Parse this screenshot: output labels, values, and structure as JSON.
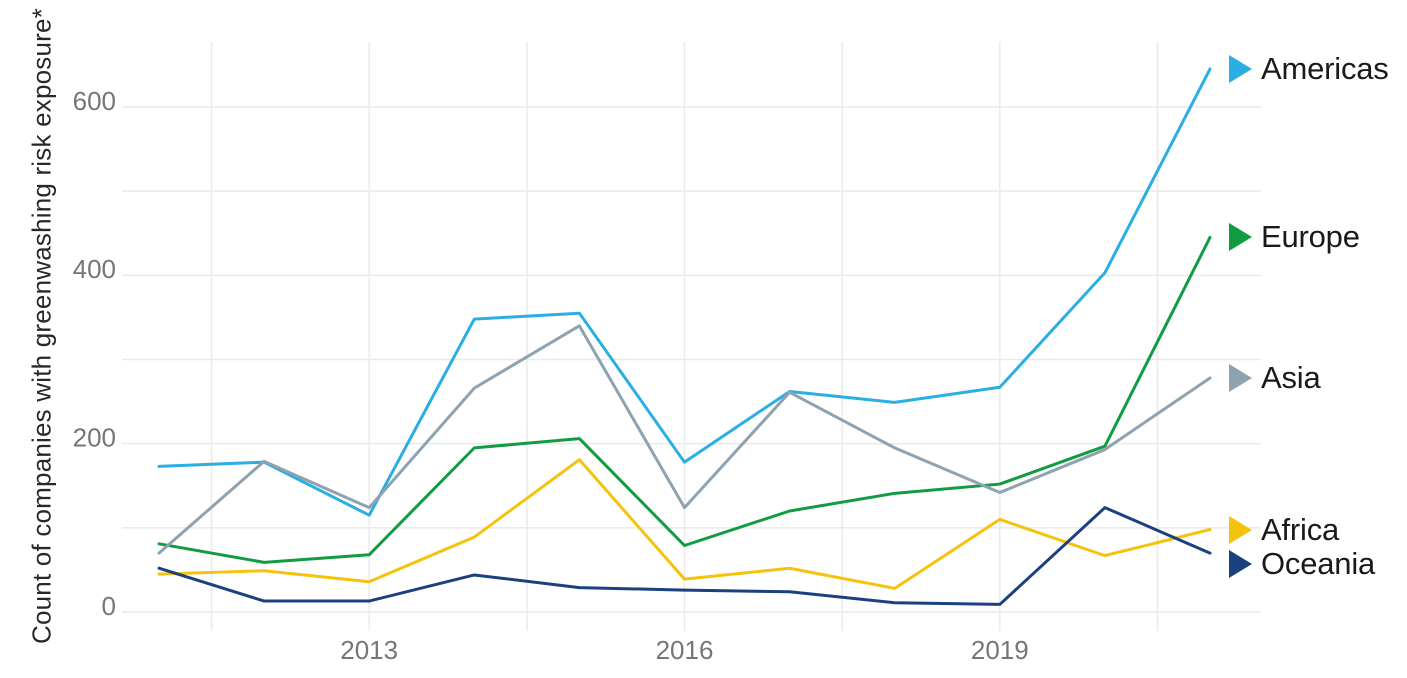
{
  "chart_data": {
    "type": "line",
    "title": "",
    "xlabel": "",
    "ylabel": "Count of companies with greenwashing risk exposure*",
    "x": [
      2011,
      2012,
      2013,
      2014,
      2015,
      2016,
      2017,
      2018,
      2019,
      2020,
      2021
    ],
    "x_tick_labels": [
      "2013",
      "2016",
      "2019"
    ],
    "x_tick_years": [
      2013,
      2016,
      2019
    ],
    "x_gridline_years": [
      2011.5,
      2013,
      2014.5,
      2016,
      2017.5,
      2019,
      2020.5
    ],
    "y_ticks": [
      0,
      200,
      400,
      600
    ],
    "y_gridlines": [
      0,
      100,
      200,
      300,
      400,
      500,
      600
    ],
    "ylim": [
      0,
      650
    ],
    "grid": true,
    "legend_position": "right",
    "legend_marker": "triangle-right-icon",
    "series": [
      {
        "name": "Americas",
        "color": "#2aaee3",
        "values": [
          173,
          178,
          115,
          348,
          355,
          178,
          262,
          249,
          267,
          403,
          645
        ]
      },
      {
        "name": "Europe",
        "color": "#119c41",
        "values": [
          81,
          59,
          68,
          195,
          206,
          79,
          120,
          141,
          152,
          197,
          445
        ]
      },
      {
        "name": "Asia",
        "color": "#8fa2b0",
        "values": [
          70,
          179,
          124,
          266,
          340,
          124,
          261,
          195,
          142,
          193,
          278
        ]
      },
      {
        "name": "Africa",
        "color": "#f5c30d",
        "values": [
          45,
          49,
          36,
          89,
          181,
          39,
          52,
          28,
          110,
          67,
          98
        ]
      },
      {
        "name": "Oceania",
        "color": "#1a4080",
        "values": [
          52,
          13,
          13,
          44,
          29,
          26,
          24,
          11,
          9,
          124,
          70
        ]
      }
    ],
    "style": {
      "gridline_color": "#e9eaeb",
      "tick_label_color": "#73767a",
      "axis_title_color": "#26282a",
      "legend_text_color": "#191a1b",
      "background": "#ffffff"
    }
  }
}
